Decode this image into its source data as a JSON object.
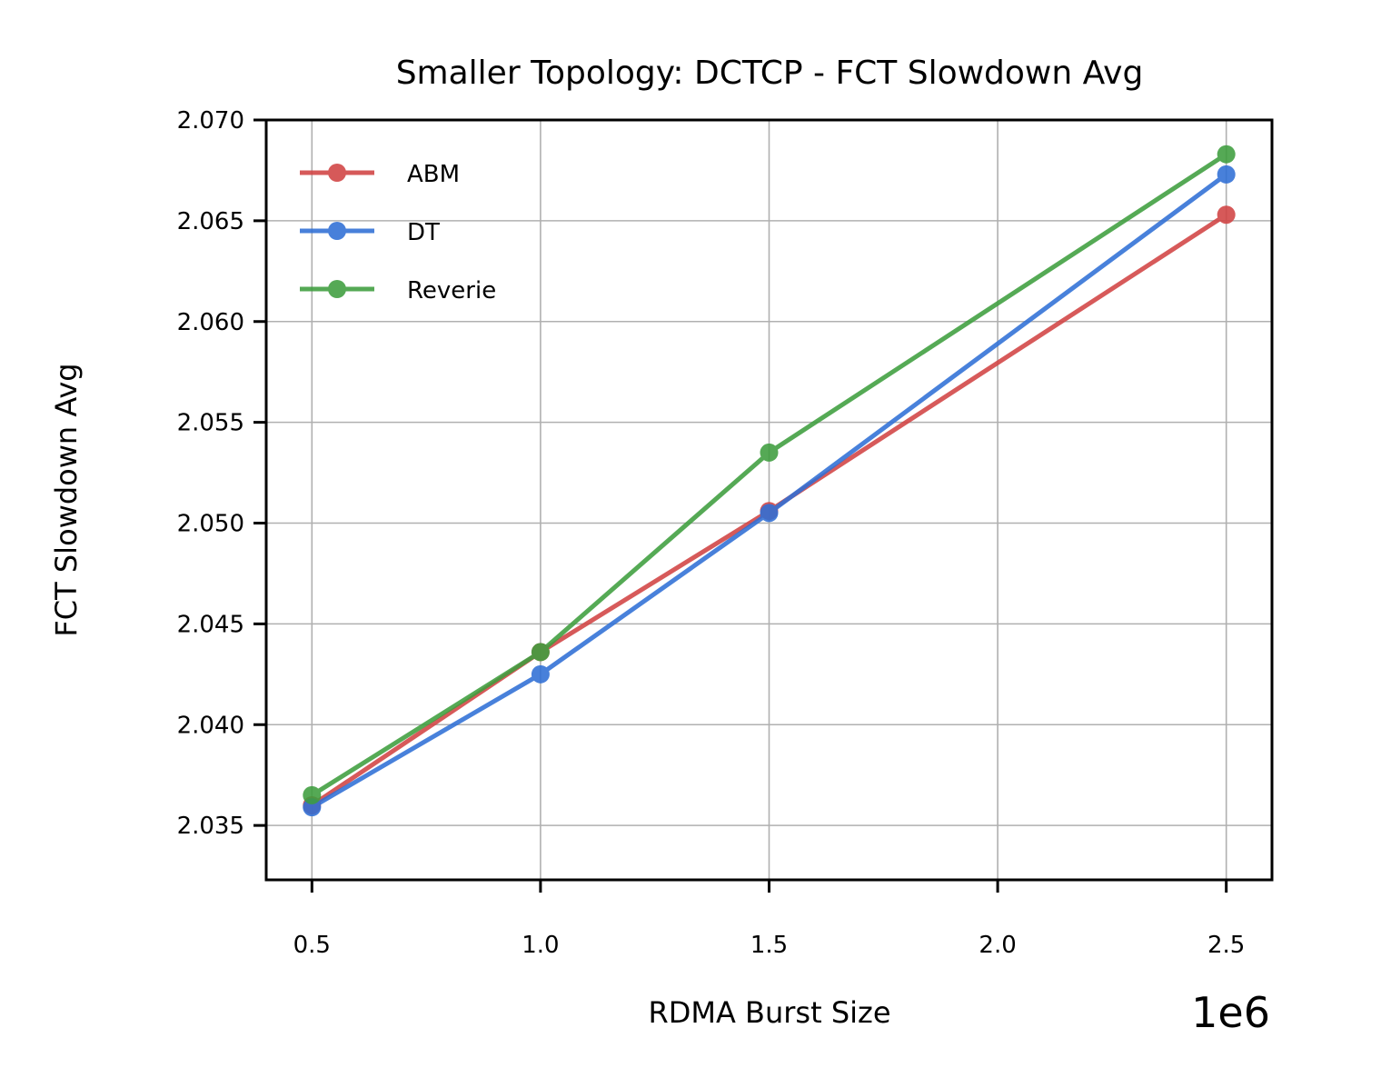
{
  "chart_data": {
    "type": "line",
    "title": "Smaller Topology: DCTCP - FCT Slowdown Avg",
    "xlabel": "RDMA Burst Size",
    "ylabel": "FCT Slowdown Avg",
    "x_offset_label": "1e6",
    "x": [
      0.5,
      1.0,
      1.5,
      2.5
    ],
    "xlim": [
      0.4,
      2.6
    ],
    "ylim": [
      2.0323,
      2.07
    ],
    "xticks": [
      0.5,
      1.0,
      1.5,
      2.0,
      2.5
    ],
    "xtick_labels": [
      "0.5",
      "1.0",
      "1.5",
      "2.0",
      "2.5"
    ],
    "yticks": [
      2.035,
      2.04,
      2.045,
      2.05,
      2.055,
      2.06,
      2.065,
      2.07
    ],
    "ytick_labels": [
      "2.035",
      "2.040",
      "2.045",
      "2.050",
      "2.055",
      "2.060",
      "2.065",
      "2.070"
    ],
    "grid": true,
    "legend_position": "top-left",
    "series": [
      {
        "name": "ABM",
        "color": "#d14343",
        "values": [
          2.036,
          2.0436,
          2.0506,
          2.0653
        ]
      },
      {
        "name": "DT",
        "color": "#2f6fd6",
        "values": [
          2.0359,
          2.0425,
          2.0505,
          2.0673
        ]
      },
      {
        "name": "Reverie",
        "color": "#3e9e3e",
        "values": [
          2.0365,
          2.0436,
          2.0535,
          2.0683
        ]
      }
    ]
  }
}
